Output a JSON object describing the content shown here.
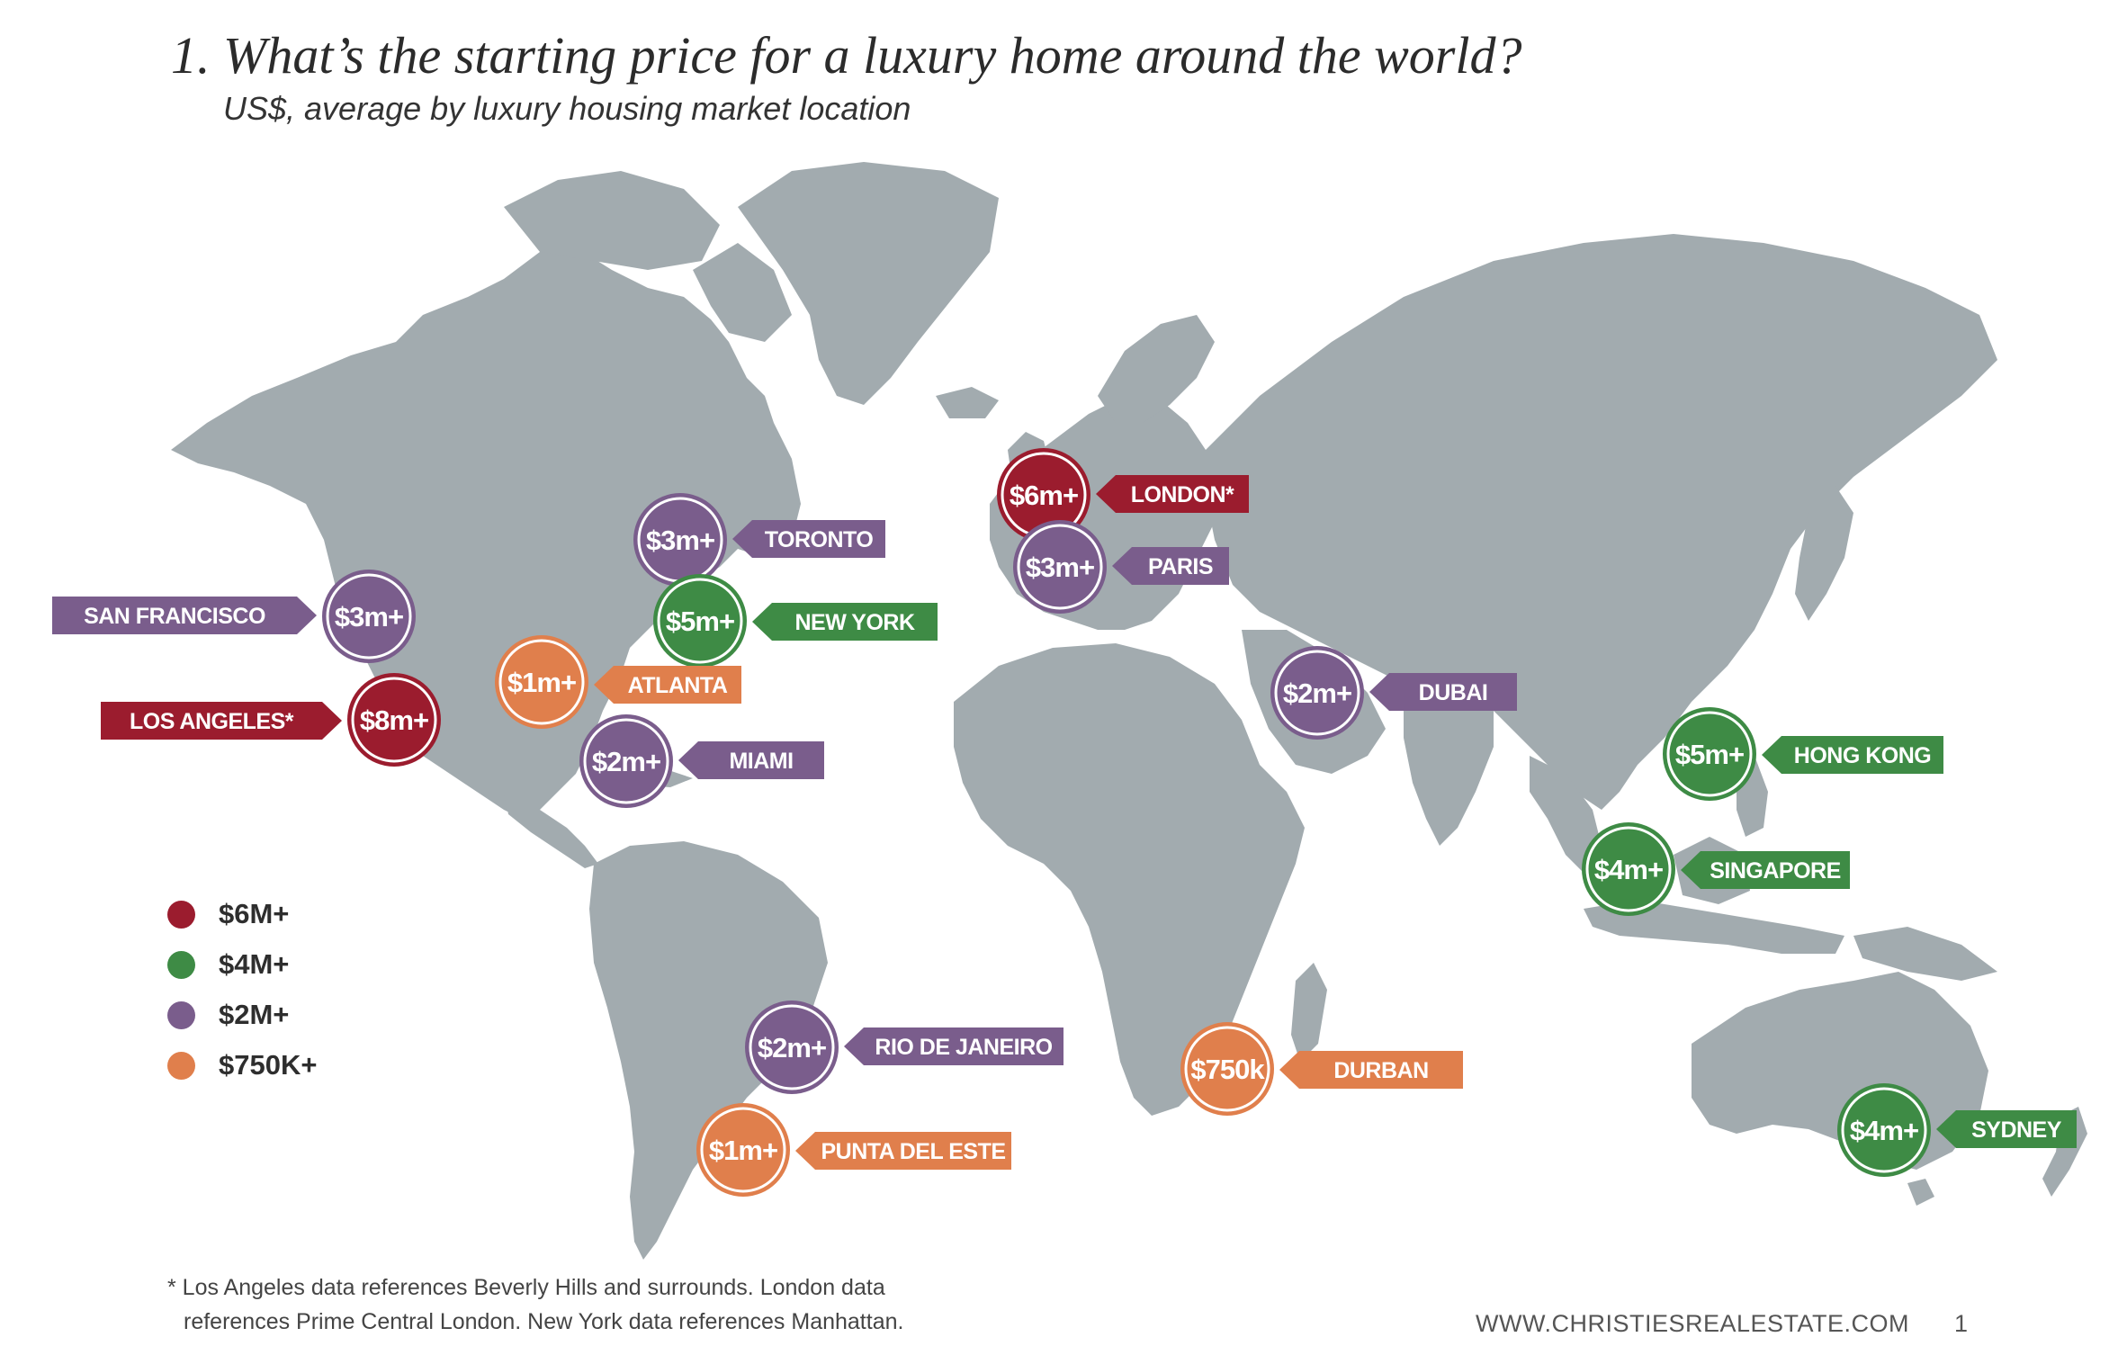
{
  "header": {
    "title": "1. What’s the starting price for a luxury home around the world?",
    "subtitle": "US$, average by luxury housing market location"
  },
  "colors": {
    "6m": "#9b1c2e",
    "4m": "#3e8b45",
    "2m": "#7a5d8c",
    "750k": "#e07f4c",
    "land": "#a2abaf"
  },
  "markers": [
    {
      "city": "LONDON*",
      "price": "$6m+",
      "tier": "6m"
    },
    {
      "city": "PARIS",
      "price": "$3m+",
      "tier": "2m"
    },
    {
      "city": "TORONTO",
      "price": "$3m+",
      "tier": "2m"
    },
    {
      "city": "NEW YORK",
      "price": "$5m+",
      "tier": "4m"
    },
    {
      "city": "SAN FRANCISCO",
      "price": "$3m+",
      "tier": "2m"
    },
    {
      "city": "ATLANTA",
      "price": "$1m+",
      "tier": "750k"
    },
    {
      "city": "LOS ANGELES*",
      "price": "$8m+",
      "tier": "6m"
    },
    {
      "city": "MIAMI",
      "price": "$2m+",
      "tier": "2m"
    },
    {
      "city": "DUBAI",
      "price": "$2m+",
      "tier": "2m"
    },
    {
      "city": "HONG KONG",
      "price": "$5m+",
      "tier": "4m"
    },
    {
      "city": "SINGAPORE",
      "price": "$4m+",
      "tier": "4m"
    },
    {
      "city": "RIO DE JANEIRO",
      "price": "$2m+",
      "tier": "2m"
    },
    {
      "city": "DURBAN",
      "price": "$750k",
      "tier": "750k"
    },
    {
      "city": "PUNTA DEL ESTE",
      "price": "$1m+",
      "tier": "750k"
    },
    {
      "city": "SYDNEY",
      "price": "$4m+",
      "tier": "4m"
    }
  ],
  "legend": [
    {
      "label": "$6M+",
      "tier": "6m"
    },
    {
      "label": "$4M+",
      "tier": "4m"
    },
    {
      "label": "$2M+",
      "tier": "2m"
    },
    {
      "label": "$750K+",
      "tier": "750k"
    }
  ],
  "footnote": {
    "line1": "* Los Angeles data references Beverly Hills and surrounds. London data",
    "line2": "references Prime Central London. New York data references Manhattan."
  },
  "footer": {
    "website": "WWW.CHRISTIESREALESTATE.COM",
    "page_number": "1"
  }
}
